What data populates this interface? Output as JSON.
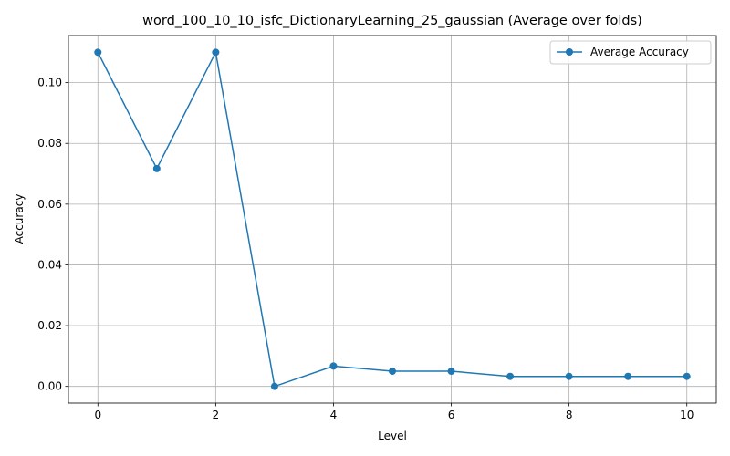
{
  "chart_data": {
    "type": "line",
    "title": "word_100_10_10_isfc_DictionaryLearning_25_gaussian (Average over folds)",
    "xlabel": "Level",
    "ylabel": "Accuracy",
    "xlim": [
      -0.5,
      10.5
    ],
    "ylim": [
      -0.0055,
      0.1155
    ],
    "xticks": [
      0,
      2,
      4,
      6,
      8,
      10
    ],
    "xtick_labels": [
      "0",
      "2",
      "4",
      "6",
      "8",
      "10"
    ],
    "yticks": [
      0.0,
      0.02,
      0.04,
      0.06,
      0.08,
      0.1
    ],
    "ytick_labels": [
      "0.00",
      "0.02",
      "0.04",
      "0.06",
      "0.08",
      "0.10"
    ],
    "grid": true,
    "legend_position": "top-right",
    "series": [
      {
        "name": "Average Accuracy",
        "color": "#1f77b4",
        "marker": "circle",
        "x": [
          0,
          1,
          2,
          3,
          4,
          5,
          6,
          7,
          8,
          9,
          10
        ],
        "y": [
          0.11,
          0.0717,
          0.11,
          0.0,
          0.0067,
          0.005,
          0.005,
          0.0033,
          0.0033,
          0.0033,
          0.0033
        ]
      }
    ]
  }
}
